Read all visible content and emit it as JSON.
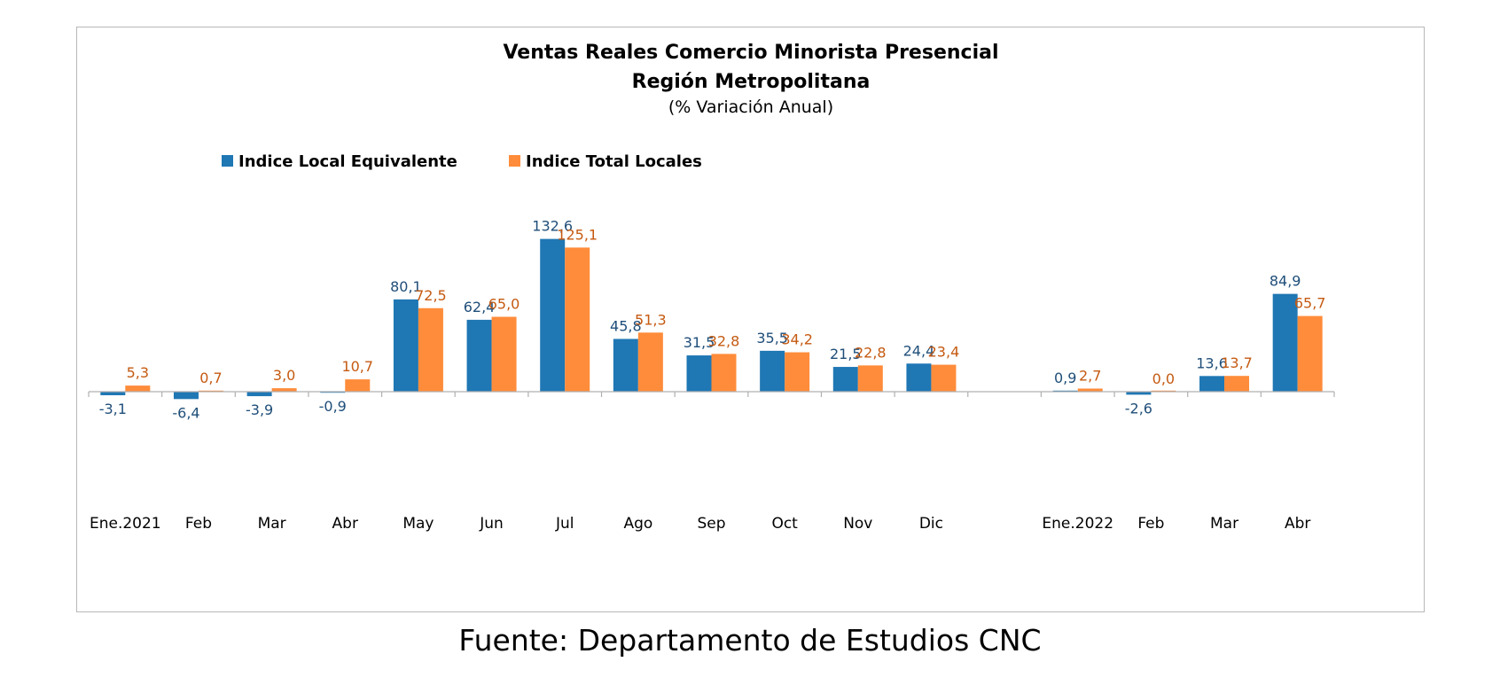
{
  "source_note": "Fuente: Departamento de Estudios CNC",
  "chart_data": {
    "type": "bar",
    "title": "Ventas Reales Comercio Minorista Presencial",
    "title_line2": "Región Metropolitana",
    "subtitle": "(% Variación Anual)",
    "categories": [
      "Ene.2021",
      "Feb",
      "Mar",
      "Abr",
      "May",
      "Jun",
      "Jul",
      "Ago",
      "Sep",
      "Oct",
      "Nov",
      "Dic",
      "",
      "Ene.2022",
      "Feb",
      "Mar",
      "Abr"
    ],
    "series": [
      {
        "name": "Indice Local Equivalente",
        "color": "#1f77b4",
        "label_color": "#1f4e79",
        "values": [
          -3.1,
          -6.4,
          -3.9,
          -0.9,
          80.1,
          62.4,
          132.6,
          45.8,
          31.5,
          35.5,
          21.5,
          24.4,
          null,
          0.9,
          -2.6,
          13.6,
          84.9
        ],
        "labels": [
          "-3,1",
          "-6,4",
          "-3,9",
          "-0,9",
          "80,1",
          "62,4",
          "132,6",
          "45,8",
          "31,5",
          "35,5",
          "21,5",
          "24,4",
          "",
          "0,9",
          "-2,6",
          "13,6",
          "84,9"
        ]
      },
      {
        "name": "Indice Total Locales",
        "color": "#ff8c3a",
        "label_color": "#c55a11",
        "values": [
          5.3,
          0.7,
          3.0,
          10.7,
          72.5,
          65.0,
          125.1,
          51.3,
          32.8,
          34.2,
          22.8,
          23.4,
          null,
          2.7,
          0.0,
          13.7,
          65.7
        ],
        "labels": [
          "5,3",
          "0,7",
          "3,0",
          "10,7",
          "72,5",
          "65,0",
          "125,1",
          "51,3",
          "32,8",
          "34,2",
          "22,8",
          "23,4",
          "",
          "2,7",
          "0,0",
          "13,7",
          "65,7"
        ]
      }
    ],
    "legend": "top-left",
    "grid": false,
    "ylim": [
      -110,
      160
    ]
  }
}
